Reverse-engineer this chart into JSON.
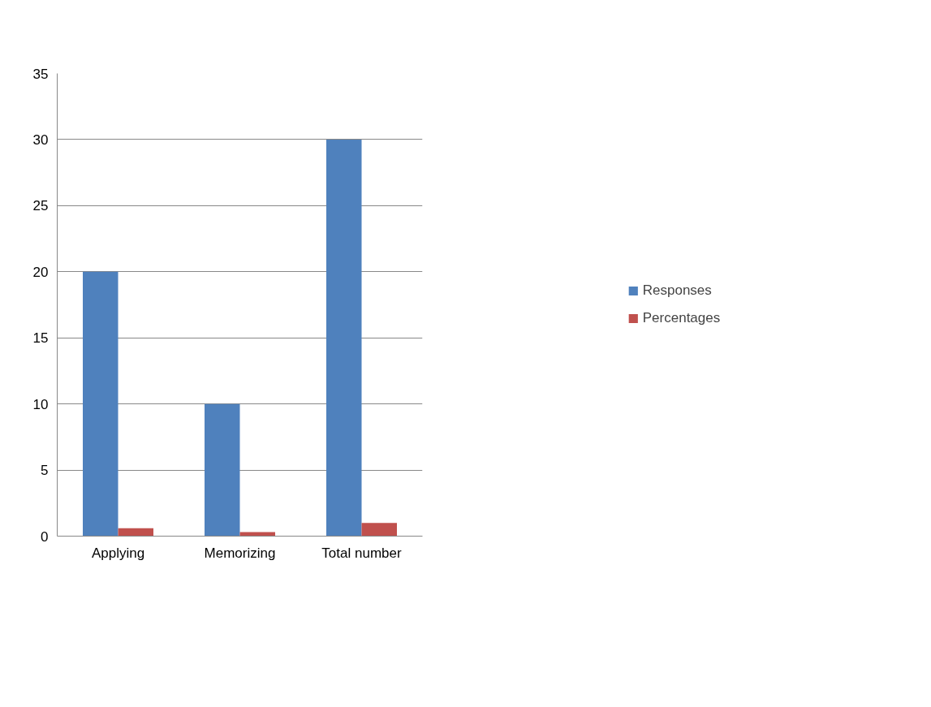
{
  "chart_data": {
    "type": "bar",
    "categories": [
      "Applying",
      "Memorizing",
      "Total number"
    ],
    "series": [
      {
        "name": "Responses",
        "color": "#4f81bd",
        "values": [
          20,
          10,
          30
        ]
      },
      {
        "name": "Percentages",
        "color": "#c0504d",
        "values": [
          0.6,
          0.3,
          1
        ]
      }
    ],
    "ylim": [
      0,
      35
    ],
    "yticks": [
      0,
      5,
      10,
      15,
      20,
      25,
      30,
      35
    ],
    "grid": "y",
    "legend": "right"
  }
}
